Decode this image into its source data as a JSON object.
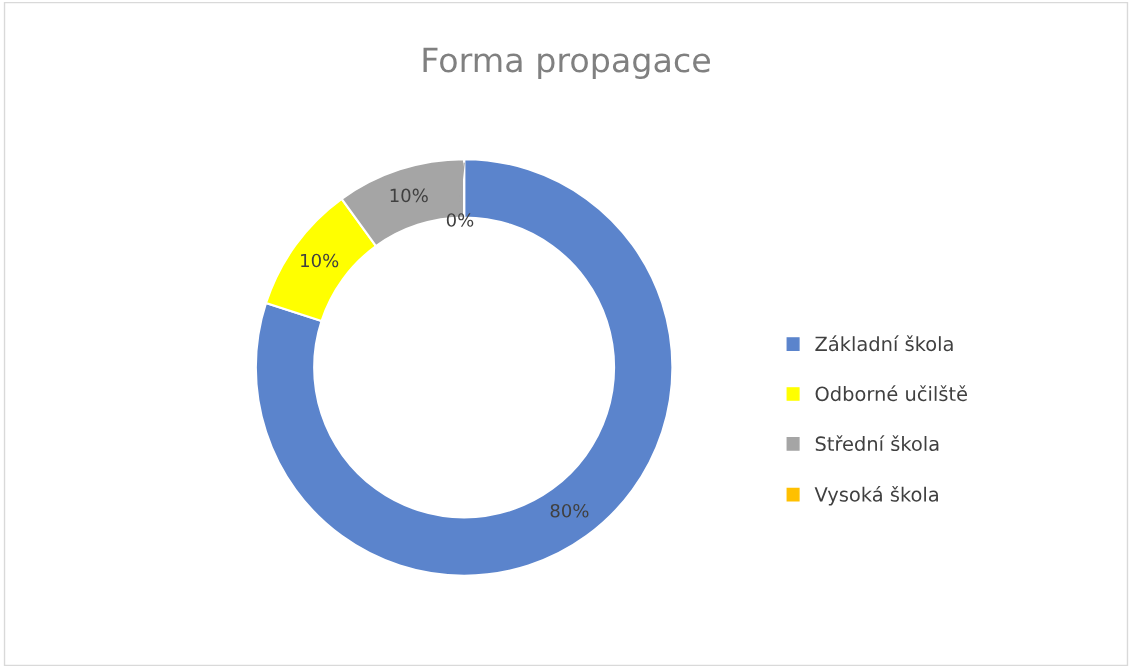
{
  "chart_data": {
    "type": "donut",
    "title": "Forma propagace",
    "categories": [
      "Základní škola",
      "Odborné učilště",
      "Střední škola",
      "Vysoká škola"
    ],
    "values": [
      80,
      10,
      10,
      0
    ],
    "colors": [
      "#5b84cc",
      "#ffff00",
      "#a5a5a5",
      "#ffc000"
    ],
    "value_labels": [
      "80%",
      "10%",
      "10%",
      "0%"
    ],
    "legend": "right"
  }
}
